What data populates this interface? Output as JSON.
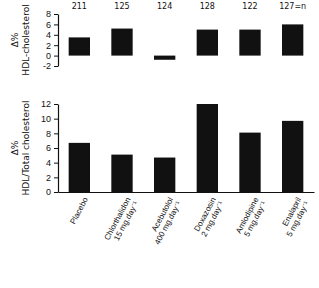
{
  "chart_data": [
    {
      "type": "bar",
      "ylabel": [
        "Δ%",
        "HDL-cholesterol"
      ],
      "categories": [
        null,
        null,
        null,
        null,
        null,
        null
      ],
      "values": [
        3.5,
        5.2,
        -0.8,
        5.0,
        5.0,
        6.0
      ],
      "annotations": [
        "211",
        "125",
        "124",
        "128",
        "122",
        "127=n"
      ],
      "color": "#111111",
      "ylim": [
        -2,
        8
      ],
      "yticks": [
        -2,
        0,
        2,
        4,
        6,
        8
      ],
      "grid": false,
      "tick_labels": "y"
    },
    {
      "type": "bar",
      "ylabel": [
        "Δ%",
        "HDL/Total cholesterol"
      ],
      "categories": [
        "Placebo",
        "Chlorthalidon 15 mg.day⁻¹",
        "Acebutolol 400 mg.day⁻¹",
        "Doxazosin 2 mg.day⁻¹",
        "Amlodipine 5 mg.day⁻¹",
        "Enalapril 5 mg.day⁻¹"
      ],
      "values": [
        6.7,
        5.1,
        4.7,
        12.0,
        8.1,
        9.7
      ],
      "color": "#111111",
      "ylim": [
        0,
        12
      ],
      "yticks": [
        0,
        2,
        4,
        6,
        8,
        10,
        12
      ],
      "grid": false
    }
  ]
}
